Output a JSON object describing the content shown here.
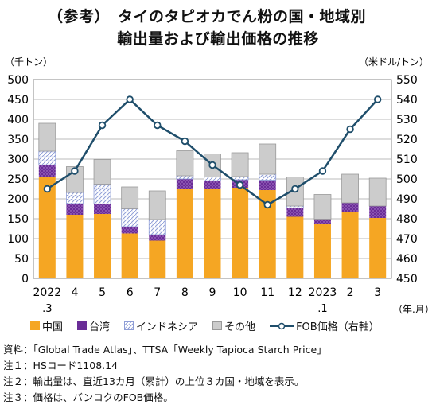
{
  "title_line1": "（参考）　タイのタピオカでん粉の国・地域別",
  "title_line2": "輸出量および輸出価格の推移",
  "chart_data": {
    "type": "bar",
    "stacked": true,
    "categories": [
      "2022\n.3",
      "4",
      "5",
      "6",
      "7",
      "8",
      "9",
      "10",
      "11",
      "12",
      "2023\n.1",
      "2",
      "3"
    ],
    "series": [
      {
        "name": "中国",
        "color": "#F5A623",
        "values": [
          255,
          160,
          162,
          113,
          95,
          225,
          225,
          228,
          222,
          155,
          137,
          168,
          152
        ]
      },
      {
        "name": "台湾",
        "color": "#7B3FA8",
        "values": [
          30,
          28,
          25,
          17,
          15,
          25,
          20,
          20,
          25,
          22,
          12,
          22,
          30
        ]
      },
      {
        "name": "インドネシア",
        "color": "#C5CDEB",
        "values": [
          35,
          28,
          50,
          45,
          38,
          8,
          10,
          8,
          15,
          5,
          0,
          0,
          0
        ]
      },
      {
        "name": "その他",
        "color": "#CCCCCC",
        "values": [
          70,
          65,
          62,
          55,
          72,
          63,
          58,
          60,
          76,
          73,
          62,
          72,
          70
        ]
      }
    ],
    "line": {
      "name": "FOB価格（右軸）",
      "color": "#1F4E6B",
      "values": [
        495,
        504,
        527,
        540,
        527,
        519,
        507,
        497,
        487,
        495,
        504,
        525,
        540
      ]
    },
    "ylim": [
      0,
      500
    ],
    "ytick_step": 50,
    "y2lim": [
      450,
      550
    ],
    "y2tick_step": 10,
    "ylabel": "（千トン）",
    "y2label": "（米ドル/トン）",
    "xlabel": "（年.月）",
    "grid": true
  },
  "notes": [
    "資料：「Global Trade Atlas」、TTSA「Weekly Tapioca Starch Price」",
    "注１：HSコード1108.14",
    "注２：輸出量は、直近13カ月（累計）の上位３カ国・地域を表示。",
    "注３：価格は、バンコクのFOB価格。"
  ]
}
